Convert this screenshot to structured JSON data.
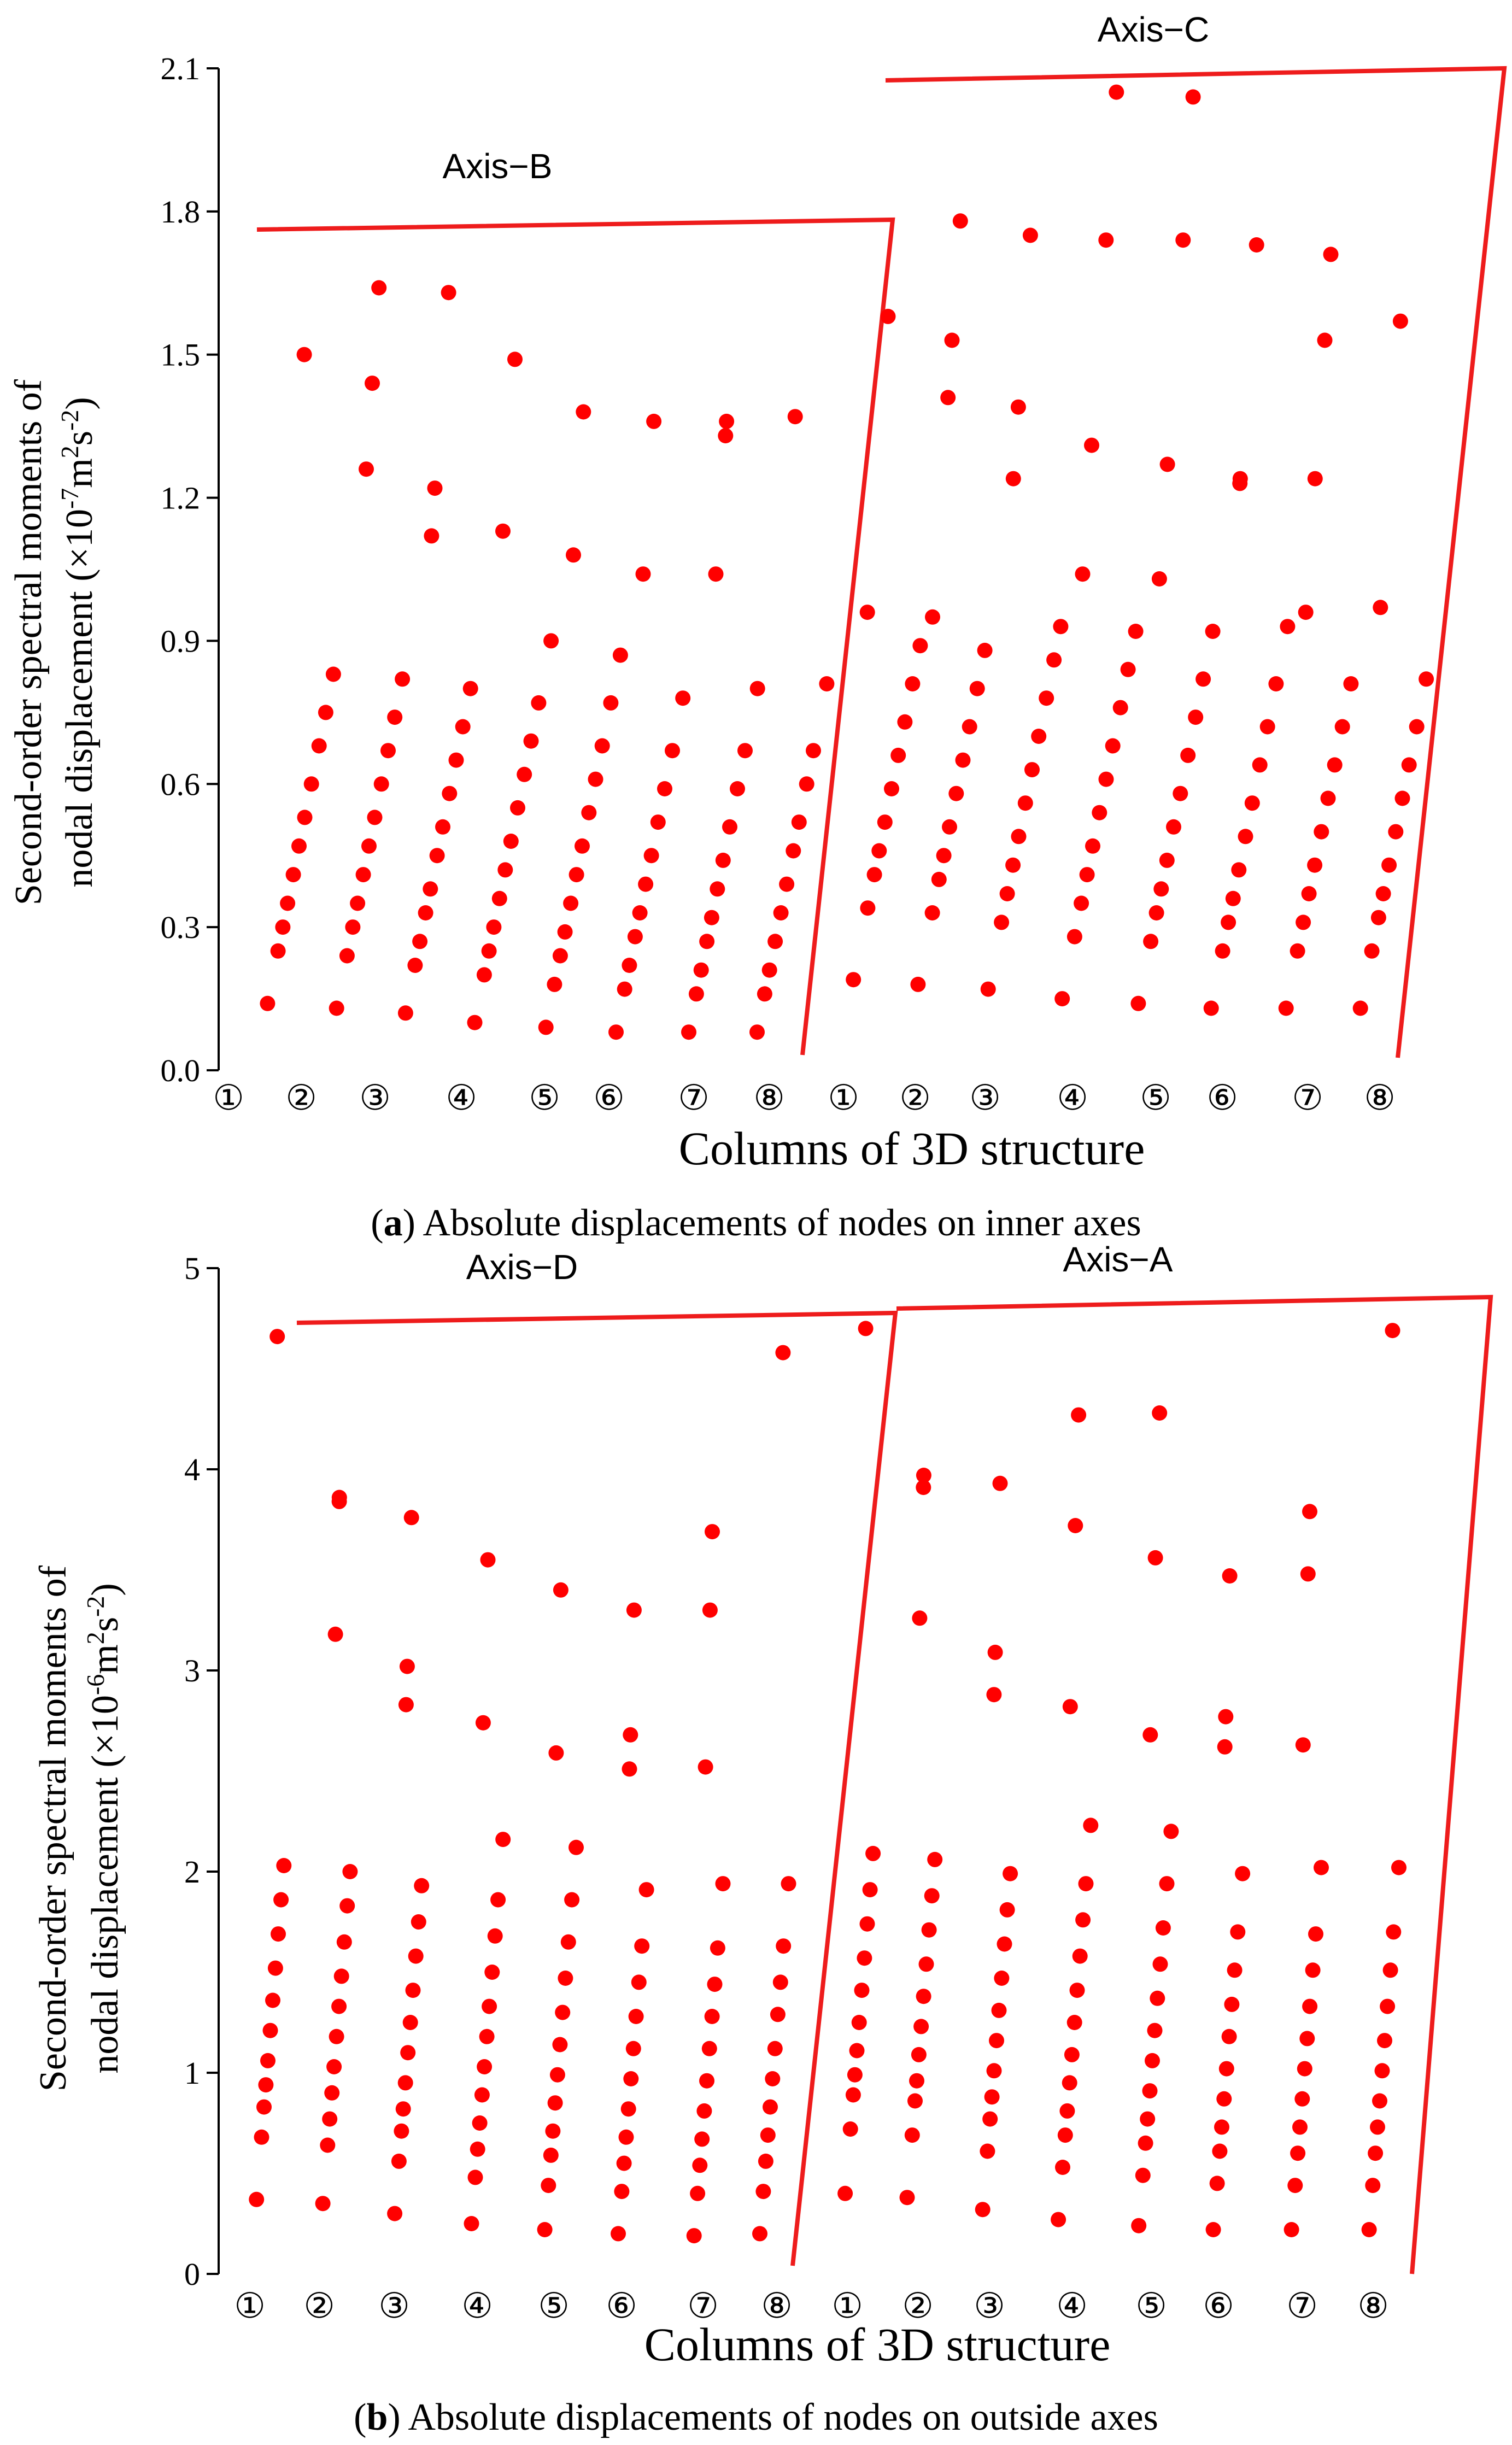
{
  "figure": {
    "colors": {
      "marker": "#ff0000",
      "frame": "#ee1c1c",
      "axis": "#000000"
    }
  },
  "chart_data": [
    {
      "type": "scatter",
      "ylabel_line1": "Second-order spectral moments of",
      "ylabel_line2": "nodal displacement (×10-7m2s-2)",
      "ylabel_unit_exp": "-7",
      "ylabel_unit_tail": "m",
      "ylabel_unit_sq": "2",
      "ylabel_unit_s": "s",
      "ylabel_unit_s_exp": "-2",
      "ylabel_unit_close": ")",
      "ylabel_line2_main": "nodal displacement (×10",
      "xlabel": "Columns of  3D structure",
      "caption_letter": "a",
      "caption_open": "(",
      "caption_rest": ") Absolute displacements of nodes on inner axes",
      "ylim": [
        0,
        2.1
      ],
      "yticks": [
        "0.0",
        "0.3",
        "0.6",
        "0.9",
        "1.2",
        "1.5",
        "1.8",
        "2.1"
      ],
      "column_labels": [
        "①",
        "②",
        "③",
        "④",
        "⑤",
        "⑥",
        "⑦",
        "⑧",
        "①",
        "②",
        "③",
        "④",
        "⑤",
        "⑥",
        "⑦",
        "⑧"
      ],
      "axis_names": [
        "Axis−B",
        "Axis−C"
      ],
      "column_x": [
        1,
        2,
        3,
        4,
        5,
        6,
        7,
        8,
        9,
        10,
        11,
        12,
        13,
        14,
        15,
        16
      ],
      "axis_groups": [
        {
          "name": "Axis−B",
          "columns": [
            1,
            8
          ],
          "top_value": 1.77,
          "bottom_value": 0.0
        },
        {
          "name": "Axis−C",
          "columns": [
            9,
            16
          ],
          "top_value": 2.09,
          "bottom_value": 0.0
        }
      ],
      "series": [
        {
          "name": "Axis−B",
          "columns": [
            {
              "column": 1,
              "y": [
                0.14,
                0.25,
                0.3,
                0.35,
                0.41,
                0.47,
                0.53,
                0.6,
                0.68,
                0.75,
                0.83,
                1.5
              ]
            },
            {
              "column": 2,
              "y": [
                0.13,
                0.24,
                0.3,
                0.35,
                0.41,
                0.47,
                0.53,
                0.6,
                0.67,
                0.74,
                0.82,
                1.26,
                1.44,
                1.64
              ]
            },
            {
              "column": 3,
              "y": [
                0.12,
                0.22,
                0.27,
                0.33,
                0.38,
                0.45,
                0.51,
                0.58,
                0.65,
                0.72,
                0.8,
                1.12,
                1.22,
                1.63
              ]
            },
            {
              "column": 4,
              "y": [
                0.1,
                0.2,
                0.25,
                0.3,
                0.36,
                0.42,
                0.48,
                0.55,
                0.62,
                0.69,
                0.77,
                0.9,
                1.13,
                1.49
              ]
            },
            {
              "column": 5,
              "y": [
                0.09,
                0.18,
                0.24,
                0.29,
                0.35,
                0.41,
                0.47,
                0.54,
                0.61,
                0.68,
                0.77,
                0.87,
                1.08,
                1.38
              ]
            },
            {
              "column": 6,
              "y": [
                0.08,
                0.17,
                0.22,
                0.28,
                0.33,
                0.39,
                0.45,
                0.52,
                0.59,
                0.67,
                0.78,
                1.04,
                1.36
              ]
            },
            {
              "column": 7,
              "y": [
                0.08,
                0.16,
                0.21,
                0.27,
                0.32,
                0.38,
                0.44,
                0.51,
                0.59,
                0.67,
                0.8,
                1.04,
                1.33,
                1.36
              ]
            },
            {
              "column": 8,
              "y": [
                0.08,
                0.16,
                0.21,
                0.27,
                0.33,
                0.39,
                0.46,
                0.52,
                0.6,
                0.67,
                0.81,
                1.37
              ]
            }
          ]
        },
        {
          "name": "Axis−C",
          "columns": [
            {
              "column": 9,
              "y": [
                0.19,
                0.34,
                0.41,
                0.46,
                0.52,
                0.59,
                0.66,
                0.73,
                0.81,
                0.89,
                0.96,
                1.58
              ]
            },
            {
              "column": 10,
              "y": [
                0.18,
                0.33,
                0.4,
                0.45,
                0.51,
                0.58,
                0.65,
                0.72,
                0.8,
                0.88,
                0.95,
                1.41,
                1.53,
                1.78
              ]
            },
            {
              "column": 11,
              "y": [
                0.17,
                0.31,
                0.37,
                0.43,
                0.49,
                0.56,
                0.63,
                0.7,
                0.78,
                0.86,
                0.93,
                1.24,
                1.39,
                1.75
              ]
            },
            {
              "column": 12,
              "y": [
                0.15,
                0.28,
                0.35,
                0.41,
                0.47,
                0.54,
                0.61,
                0.68,
                0.76,
                0.84,
                0.92,
                1.04,
                1.31,
                1.74,
                2.05
              ]
            },
            {
              "column": 13,
              "y": [
                0.14,
                0.27,
                0.33,
                0.38,
                0.44,
                0.51,
                0.58,
                0.66,
                0.74,
                0.82,
                0.92,
                1.03,
                1.27,
                1.74,
                2.04
              ]
            },
            {
              "column": 14,
              "y": [
                0.13,
                0.25,
                0.31,
                0.36,
                0.42,
                0.49,
                0.56,
                0.64,
                0.72,
                0.81,
                0.93,
                1.23,
                1.24,
                1.73
              ]
            },
            {
              "column": 15,
              "y": [
                0.13,
                0.25,
                0.31,
                0.37,
                0.43,
                0.5,
                0.57,
                0.64,
                0.72,
                0.81,
                0.96,
                1.24,
                1.53,
                1.71
              ]
            },
            {
              "column": 16,
              "y": [
                0.13,
                0.25,
                0.32,
                0.37,
                0.43,
                0.5,
                0.57,
                0.64,
                0.72,
                0.82,
                0.97,
                1.57
              ]
            }
          ]
        }
      ]
    },
    {
      "type": "scatter",
      "ylabel_line1": "Second-order spectral moments of",
      "ylabel_line2_main": "nodal displacement (×10",
      "ylabel_unit_exp": "-6",
      "ylabel_unit_tail": "m",
      "ylabel_unit_sq": "2",
      "ylabel_unit_s": "s",
      "ylabel_unit_s_exp": "-2",
      "ylabel_unit_close": ")",
      "xlabel": "Columns of  3D structure",
      "caption_letter": "b",
      "caption_open": "(",
      "caption_rest": ") Absolute displacements of nodes on outside axes",
      "ylim": [
        0,
        5
      ],
      "yticks": [
        "0",
        "1",
        "2",
        "3",
        "4",
        "5"
      ],
      "column_labels": [
        "①",
        "②",
        "③",
        "④",
        "⑤",
        "⑥",
        "⑦",
        "⑧",
        "①",
        "②",
        "③",
        "④",
        "⑤",
        "⑥",
        "⑦",
        "⑧"
      ],
      "axis_names": [
        "Axis−D",
        "Axis−A"
      ],
      "column_x": [
        1,
        2,
        3,
        4,
        5,
        6,
        7,
        8,
        9,
        10,
        11,
        12,
        13,
        14,
        15,
        16
      ],
      "axis_groups": [
        {
          "name": "Axis−D",
          "columns": [
            1,
            8
          ],
          "top_value": 4.78,
          "bottom_value": 0.0
        },
        {
          "name": "Axis−A",
          "columns": [
            9,
            16
          ],
          "top_value": 4.88,
          "bottom_value": 0.0
        }
      ],
      "series": [
        {
          "name": "Axis−D",
          "columns": [
            {
              "column": 1,
              "y": [
                0.37,
                0.68,
                0.83,
                0.94,
                1.06,
                1.21,
                1.36,
                1.52,
                1.69,
                1.86,
                2.03,
                4.66
              ]
            },
            {
              "column": 2,
              "y": [
                0.35,
                0.64,
                0.77,
                0.9,
                1.03,
                1.18,
                1.33,
                1.48,
                1.65,
                1.83,
                2.0,
                3.18,
                3.84,
                3.86
              ]
            },
            {
              "column": 3,
              "y": [
                0.3,
                0.56,
                0.71,
                0.82,
                0.95,
                1.1,
                1.25,
                1.41,
                1.58,
                1.75,
                1.93,
                2.83,
                3.02,
                3.76
              ]
            },
            {
              "column": 4,
              "y": [
                0.25,
                0.48,
                0.62,
                0.75,
                0.89,
                1.03,
                1.18,
                1.33,
                1.5,
                1.68,
                1.86,
                2.16,
                2.74,
                3.55
              ]
            },
            {
              "column": 5,
              "y": [
                0.22,
                0.44,
                0.59,
                0.71,
                0.85,
                0.99,
                1.14,
                1.3,
                1.47,
                1.65,
                1.86,
                2.12,
                2.59,
                3.4
              ]
            },
            {
              "column": 6,
              "y": [
                0.2,
                0.41,
                0.55,
                0.68,
                0.82,
                0.97,
                1.12,
                1.28,
                1.45,
                1.63,
                1.91,
                2.51,
                2.68,
                3.3
              ]
            },
            {
              "column": 7,
              "y": [
                0.19,
                0.4,
                0.54,
                0.67,
                0.81,
                0.96,
                1.12,
                1.28,
                1.44,
                1.62,
                1.94,
                2.52,
                3.3,
                3.69
              ]
            },
            {
              "column": 8,
              "y": [
                0.2,
                0.41,
                0.56,
                0.69,
                0.83,
                0.97,
                1.12,
                1.29,
                1.45,
                1.63,
                1.94,
                4.58
              ]
            }
          ]
        },
        {
          "name": "Axis−A",
          "columns": [
            {
              "column": 9,
              "y": [
                0.4,
                0.72,
                0.89,
                0.99,
                1.11,
                1.25,
                1.41,
                1.57,
                1.74,
                1.91,
                2.09,
                4.7
              ]
            },
            {
              "column": 10,
              "y": [
                0.38,
                0.69,
                0.86,
                0.96,
                1.09,
                1.23,
                1.38,
                1.54,
                1.71,
                1.88,
                2.06,
                3.26,
                3.91,
                3.97
              ]
            },
            {
              "column": 11,
              "y": [
                0.32,
                0.61,
                0.77,
                0.88,
                1.01,
                1.16,
                1.31,
                1.47,
                1.64,
                1.81,
                1.99,
                2.88,
                3.09,
                3.93
              ]
            },
            {
              "column": 12,
              "y": [
                0.27,
                0.53,
                0.69,
                0.81,
                0.95,
                1.09,
                1.25,
                1.41,
                1.58,
                1.76,
                1.94,
                2.23,
                2.82,
                3.72,
                4.27
              ]
            },
            {
              "column": 13,
              "y": [
                0.24,
                0.49,
                0.65,
                0.77,
                0.91,
                1.06,
                1.21,
                1.37,
                1.54,
                1.72,
                1.94,
                2.2,
                2.68,
                3.56,
                4.28
              ]
            },
            {
              "column": 14,
              "y": [
                0.22,
                0.45,
                0.61,
                0.73,
                0.87,
                1.02,
                1.18,
                1.34,
                1.51,
                1.7,
                1.99,
                2.62,
                2.77,
                3.47
              ]
            },
            {
              "column": 15,
              "y": [
                0.22,
                0.44,
                0.6,
                0.73,
                0.87,
                1.02,
                1.17,
                1.33,
                1.51,
                1.69,
                2.02,
                2.63,
                3.48,
                3.79
              ]
            },
            {
              "column": 16,
              "y": [
                0.22,
                0.44,
                0.6,
                0.73,
                0.86,
                1.01,
                1.16,
                1.33,
                1.51,
                1.7,
                2.02,
                4.69
              ]
            }
          ]
        }
      ]
    }
  ]
}
